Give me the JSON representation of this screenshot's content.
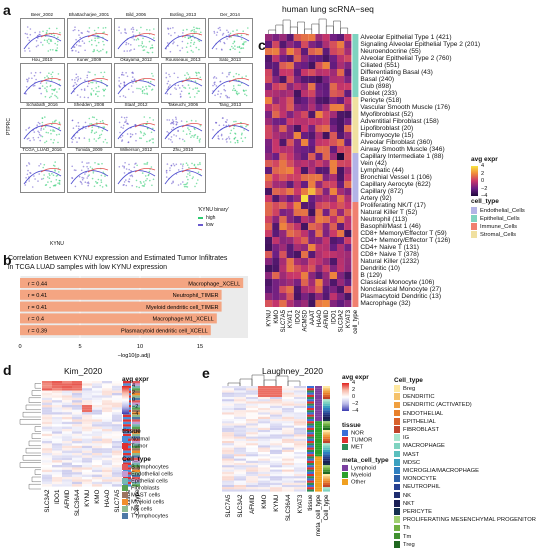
{
  "panel_labels": {
    "a": "a",
    "b": "b",
    "c": "c",
    "d": "d",
    "e": "e"
  },
  "panel_a": {
    "datasets": [
      "Beer_2002",
      "Bhattacharjee_2001",
      "Bild_2006",
      "Botling_2013",
      "Der_2014",
      "Hou_2010",
      "Kuner_2009",
      "Okayama_2012",
      "Rousseaux_2013",
      "Sato_2013",
      "Schabath_2016",
      "Shedden_2008",
      "Staaf_2012",
      "Takeuchi_2006",
      "Tang_2013",
      "TCGA_LUAD_2016",
      "Tomida_2009",
      "Wilkerson_2012",
      "Zhu_2010"
    ],
    "y_label": "PTPRC",
    "x_label": "KYNU",
    "legend_title": "'KYNU binary'",
    "legend_items": [
      {
        "label": "high",
        "color": "#2ecc71"
      },
      {
        "label": "low",
        "color": "#6a5acd"
      }
    ]
  },
  "panel_b": {
    "title_line1": "Correlation Between KYNU expression and Estimated Tumor Infiltrates",
    "title_line2": "in TCGA LUAD samples with low KYNU expression",
    "x_label": "−log10(p.adj)",
    "x_ticks": [
      "0",
      "5",
      "10",
      "15"
    ],
    "bar_color": "#f4a582",
    "chart_data": {
      "type": "bar",
      "orientation": "horizontal",
      "categories": [
        "Macrophage_XCELL",
        "Neutrophil_TIMER",
        "Myeloid dendritic cell_TIMER",
        "Macrophage M1_XCELL",
        "Plasmacytoid dendritic cell_XCELL"
      ],
      "r_labels": [
        "r = 0.44",
        "r = 0.41",
        "r = 0.41",
        "r = 0.4",
        "r = 0.39"
      ],
      "values": [
        18.6,
        16.8,
        16.8,
        16.4,
        15.9
      ],
      "xlim": [
        0,
        19
      ],
      "xlabel": "−log10(p.adj)"
    }
  },
  "panel_c": {
    "title": "human lung scRNA−seq",
    "genes": [
      "KYNU",
      "KMO",
      "SLC7A5",
      "KYAT1",
      "IDO2",
      "ACMSD",
      "AAAT",
      "HAAO",
      "AFMID",
      "IDO1",
      "SLC3A2",
      "KYAT3"
    ],
    "x_extra": "cell_type",
    "cell_types": [
      "Alveolar Epithelial Type 1 (421)",
      "Signaling Alveolar Epithelial Type 2 (201)",
      "Neuroendocrine (55)",
      "Alveolar Epithelial Type 2 (760)",
      "Ciliated (551)",
      "Differentiating Basal (43)",
      "Basal (240)",
      "Club (898)",
      "Goblet (233)",
      "Pericyte (518)",
      "Vascular Smooth Muscle (176)",
      "Myofibroblast (52)",
      "Adventitial Fibroblast (158)",
      "Lipofibroblast (20)",
      "Fibromyocyte (15)",
      "Alveolar Fibroblast (360)",
      "Airway Smooth Muscle (346)",
      "Capillary Intermediate 1 (88)",
      "Vein (42)",
      "Lymphatic (44)",
      "Bronchial Vessel 1 (106)",
      "Capillary Aerocyte (622)",
      "Capillary (872)",
      "Artery (92)",
      "Proliferating NK/T (17)",
      "Natural Killer T (52)",
      "Neutrophil (113)",
      "Basophil/Mast 1 (46)",
      "CD8+ Memory/Effector T (59)",
      "CD4+ Memory/Effector T (126)",
      "CD4+ Naive T (131)",
      "CD8+ Naive T (378)",
      "Natural Killer (1232)",
      "Dendritic (10)",
      "B (129)",
      "Classical Monocyte (106)",
      "Nonclassical Monocyte (27)",
      "Plasmacytoid Dendritic (13)",
      "Macrophage (32)"
    ],
    "legend_title": "avg expr",
    "legend_ticks": [
      "4",
      "2",
      "0",
      "−2",
      "−4"
    ],
    "cell_type_title": "cell_type",
    "cell_type_legend": [
      {
        "label": "Endothelial_Cells",
        "color": "#b3b3e6"
      },
      {
        "label": "Epithelial_Cells",
        "color": "#7fd3c0"
      },
      {
        "label": "Immune_Cells",
        "color": "#f08070"
      },
      {
        "label": "Stromal_Cells",
        "color": "#f0e0a0"
      }
    ]
  },
  "panel_d": {
    "title": "Kim_2020",
    "genes": [
      "SLC3A2",
      "IDO1",
      "AFMID",
      "SLC36A4",
      "KYNU",
      "KMO",
      "HAAO",
      "SLC7A5"
    ],
    "x_extra": [
      "tissue",
      "Cell_type"
    ],
    "legend_title": "avg expr",
    "legend_ticks": [
      "4",
      "2",
      "0",
      "−2",
      "−4"
    ],
    "tissue_title": "tissue",
    "tissue_legend": [
      {
        "label": "Normal",
        "color": "#4a90d9"
      },
      {
        "label": "Tumor",
        "color": "#e03030"
      }
    ],
    "cell_type_title": "Cell_type",
    "cell_type_legend": [
      {
        "label": "B lymphocytes",
        "color": "#e15759"
      },
      {
        "label": "Endothelial cells",
        "color": "#c39bd3"
      },
      {
        "label": "Epithelial cells",
        "color": "#76b7b2"
      },
      {
        "label": "Fibroblasts",
        "color": "#59a14f"
      },
      {
        "label": "MAST cells",
        "color": "#9c755f"
      },
      {
        "label": "Myeloid cells",
        "color": "#f28e2b"
      },
      {
        "label": "NK cells",
        "color": "#8fbc8f"
      },
      {
        "label": "T lymphocytes",
        "color": "#4e79a7"
      }
    ]
  },
  "panel_e": {
    "title": "Laughney_2020",
    "genes": [
      "SLC7A5",
      "SLC3A2",
      "AFMID",
      "KMO",
      "KYNU",
      "SLC36A4",
      "KYAT3"
    ],
    "x_extra": [
      "tissue",
      "meta_cell_type",
      "Cell_type"
    ],
    "legend_title": "avg expr",
    "legend_ticks": [
      "4",
      "2",
      "0",
      "−2",
      "−4"
    ],
    "tissue_title": "tissue",
    "tissue_legend": [
      {
        "label": "NOR",
        "color": "#3a6fd8"
      },
      {
        "label": "TUMOR",
        "color": "#e03030"
      },
      {
        "label": "MET",
        "color": "#2e8b57"
      }
    ],
    "meta_title": "meta_cell_type",
    "meta_legend": [
      {
        "label": "Lymphoid",
        "color": "#7b3fa0"
      },
      {
        "label": "Myeloid",
        "color": "#2ca02c"
      },
      {
        "label": "Other",
        "color": "#f0a020"
      }
    ],
    "cell_type_title": "Cell_type",
    "cell_type_legend": [
      {
        "label": "Breg",
        "color": "#ffe8a0"
      },
      {
        "label": "DENDRITIC",
        "color": "#f5c26b"
      },
      {
        "label": "DENDRITIC (ACTIVATED)",
        "color": "#f0a040"
      },
      {
        "label": "ENDOTHELIAL",
        "color": "#e8802a"
      },
      {
        "label": "EPITHELIAL",
        "color": "#d9622b"
      },
      {
        "label": "FIBROBLAST",
        "color": "#c0442a"
      },
      {
        "label": "IG",
        "color": "#a8e6cf"
      },
      {
        "label": "MACROPHAGE",
        "color": "#7fd3c0"
      },
      {
        "label": "MAST",
        "color": "#5bc0be"
      },
      {
        "label": "MDSC",
        "color": "#3aa0c0"
      },
      {
        "label": "MICROGLIA/MACROPHAGE",
        "color": "#2f7fc0"
      },
      {
        "label": "MONOCYTE",
        "color": "#2b5fa8"
      },
      {
        "label": "NEUTROPHIL",
        "color": "#264090"
      },
      {
        "label": "NK",
        "color": "#1f2e70"
      },
      {
        "label": "NKT",
        "color": "#1a1f55"
      },
      {
        "label": "PERICYTE",
        "color": "#153050"
      },
      {
        "label": "PROLIFERATING MESENCHYMAL PROGENITOR",
        "color": "#a0d070"
      },
      {
        "label": "Th",
        "color": "#70b040"
      },
      {
        "label": "Tm",
        "color": "#409030"
      },
      {
        "label": "Treg",
        "color": "#206820"
      }
    ]
  }
}
